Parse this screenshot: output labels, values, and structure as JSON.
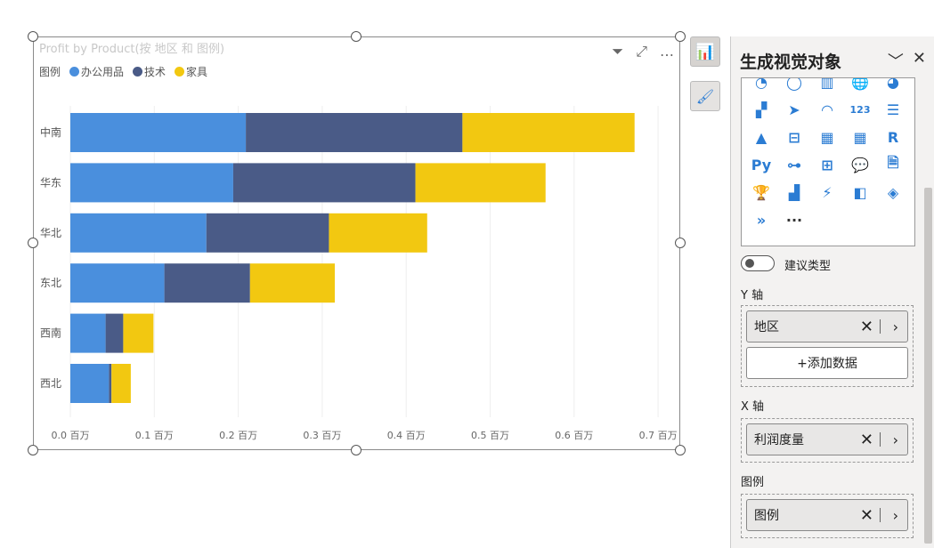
{
  "visual": {
    "title": "Profit by Product(按 地区 和 图例)",
    "legend_title": "图例",
    "more_icon": "…"
  },
  "chart_data": {
    "type": "bar",
    "orientation": "horizontal",
    "stacked": true,
    "title": "Profit by Product(按 地区 和 图例)",
    "categories": [
      "中南",
      "华东",
      "华北",
      "东北",
      "西南",
      "西北"
    ],
    "series": [
      {
        "name": "办公用品",
        "color": "#4a8fdd",
        "values": [
          0.209,
          0.194,
          0.162,
          0.112,
          0.042,
          0.046
        ]
      },
      {
        "name": "技术",
        "color": "#4a5b87",
        "values": [
          0.258,
          0.217,
          0.146,
          0.102,
          0.021,
          0.003
        ]
      },
      {
        "name": "家具",
        "color": "#f2c811",
        "values": [
          0.205,
          0.155,
          0.117,
          0.101,
          0.036,
          0.023
        ]
      }
    ],
    "xlim": [
      0,
      0.73
    ],
    "xticks": [
      "0.0 百万",
      "0.1 百万",
      "0.2 百万",
      "0.3 百万",
      "0.4 百万",
      "0.5 百万",
      "0.6 百万",
      "0.7 百万"
    ],
    "tick_values": [
      0,
      0.1,
      0.2,
      0.3,
      0.4,
      0.5,
      0.6,
      0.7
    ],
    "grid": true,
    "legend": "top-left"
  },
  "pane": {
    "title": "生成视觉对象",
    "more": "···",
    "r_label": "R",
    "py_label": "Py",
    "num_label": "123",
    "suggest_label": "建议类型",
    "y_axis": {
      "label": "Y 轴",
      "field": "地区",
      "add": "+添加数据"
    },
    "x_axis": {
      "label": "X 轴",
      "field": "利润度量"
    },
    "legend": {
      "label": "图例",
      "field": "图例"
    }
  }
}
